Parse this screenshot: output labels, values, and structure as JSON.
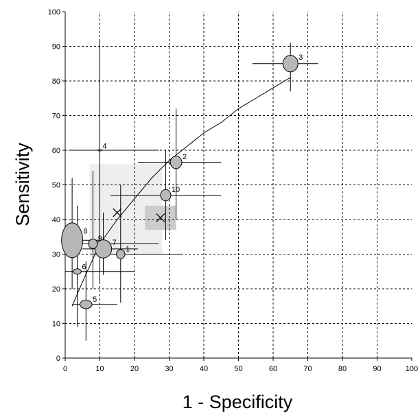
{
  "chart_data": {
    "type": "scatter",
    "title": "",
    "xlabel": "1 - Specificity",
    "ylabel": "Sensitivity",
    "xlim": [
      0,
      100
    ],
    "ylim": [
      0,
      100
    ],
    "x_ticks": [
      0,
      10,
      20,
      30,
      40,
      50,
      60,
      70,
      80,
      90,
      100
    ],
    "y_ticks": [
      0,
      10,
      20,
      30,
      40,
      50,
      60,
      70,
      80,
      90,
      100
    ],
    "grid": true,
    "colors": {
      "bubble": "#b8b8b8",
      "outer_region": "#eeeeee",
      "inner_region": "#cccccc",
      "line": "#000000"
    },
    "studies": [
      {
        "label": "1",
        "x": 16,
        "y": 30,
        "x_ci": [
          8,
          34
        ],
        "y_ci": [
          16,
          50
        ],
        "size": 2.8
      },
      {
        "label": "2",
        "x": 32,
        "y": 56.5,
        "x_ci": [
          21,
          45
        ],
        "y_ci": [
          40,
          72
        ],
        "size": 3.8
      },
      {
        "label": "3",
        "x": 65,
        "y": 85,
        "x_ci": [
          54,
          73
        ],
        "y_ci": [
          77,
          91
        ],
        "size": 5
      },
      {
        "label": "4",
        "x": 10,
        "y": 60,
        "x_ci": [
          1,
          27
        ],
        "y_ci": [
          22,
          92
        ],
        "size": 1.3
      },
      {
        "label": "5",
        "x": 6,
        "y": 15.5,
        "x_ci": [
          2,
          15
        ],
        "y_ci": [
          5,
          28
        ],
        "size": 4
      },
      {
        "label": "6",
        "x": 3.5,
        "y": 25,
        "x_ci": [
          0,
          20
        ],
        "y_ci": [
          9,
          44
        ],
        "size": 2.6
      },
      {
        "label": "7",
        "x": 11,
        "y": 31.5,
        "x_ci": [
          5,
          21
        ],
        "y_ci": [
          24,
          42
        ],
        "size": 5.5
      },
      {
        "label": "8",
        "x": 2,
        "y": 34,
        "x_ci": [
          1,
          10
        ],
        "y_ci": [
          20,
          52
        ],
        "size": 7
      },
      {
        "label": "9",
        "x": 8,
        "y": 33,
        "x_ci": [
          3,
          27
        ],
        "y_ci": [
          20,
          54
        ],
        "size": 2.9
      },
      {
        "label": "10",
        "x": 29,
        "y": 47,
        "x_ci": [
          13,
          45
        ],
        "y_ci": [
          34,
          60
        ],
        "size": 3.4
      }
    ],
    "curve": [
      [
        2,
        15
      ],
      [
        5,
        22
      ],
      [
        10,
        33
      ],
      [
        15,
        40
      ],
      [
        20,
        46
      ],
      [
        25,
        52
      ],
      [
        30,
        57
      ],
      [
        35,
        61
      ],
      [
        40,
        65
      ],
      [
        45,
        68
      ],
      [
        50,
        72
      ],
      [
        55,
        75
      ],
      [
        60,
        78
      ],
      [
        65,
        81
      ]
    ],
    "summary_points": [
      {
        "x": 15,
        "y": 42,
        "region": {
          "x": [
            7,
            28
          ],
          "y": [
            30,
            56
          ]
        }
      },
      {
        "x": 27.5,
        "y": 40.5,
        "region": {
          "x": [
            23,
            32
          ],
          "y": [
            37,
            44
          ]
        }
      }
    ]
  }
}
